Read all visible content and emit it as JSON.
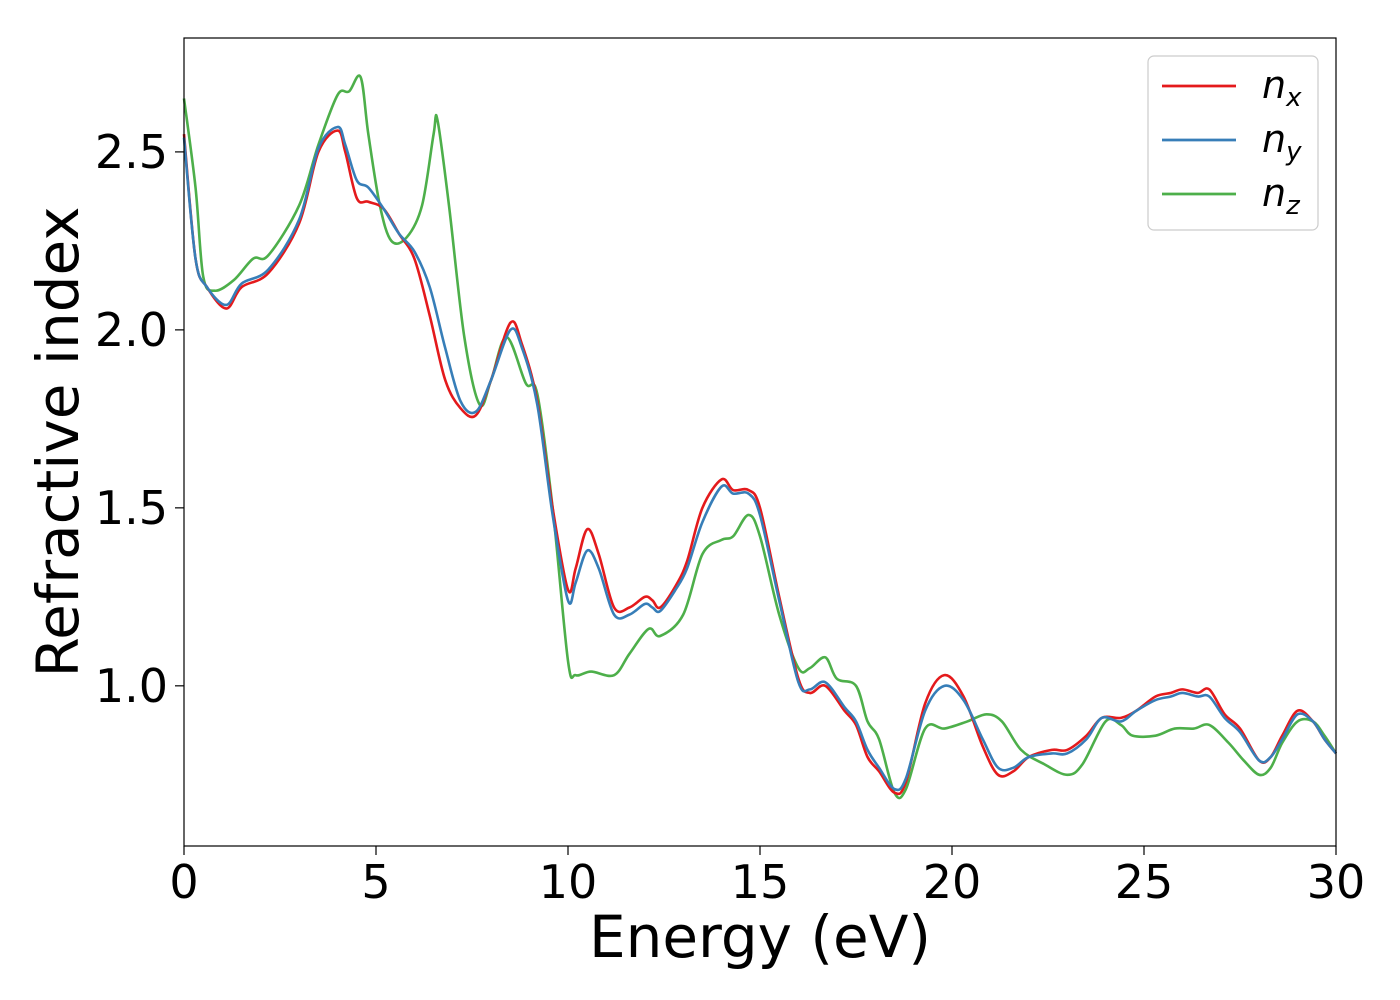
{
  "chart_data": {
    "type": "line",
    "title": "",
    "xlabel": "Energy (eV)",
    "ylabel": "Refractive index",
    "xlim": [
      0,
      30
    ],
    "ylim": [
      0.55,
      2.82
    ],
    "xticks": [
      0,
      5,
      10,
      15,
      20,
      25,
      30
    ],
    "xtick_labels": [
      "0",
      "5",
      "10",
      "15",
      "20",
      "25",
      "30"
    ],
    "yticks": [
      1.0,
      1.5,
      2.0,
      2.5
    ],
    "ytick_labels": [
      "1.0",
      "1.5",
      "2.0",
      "2.5"
    ],
    "grid": false,
    "legend_position": "top-right",
    "series": [
      {
        "name": "n_x",
        "label_base": "n",
        "label_sub": "x",
        "color": "#e41a1c",
        "points": [
          [
            0,
            2.55
          ],
          [
            0.3,
            2.2
          ],
          [
            0.6,
            2.12
          ],
          [
            1.1,
            2.06
          ],
          [
            1.5,
            2.12
          ],
          [
            2.2,
            2.16
          ],
          [
            3.0,
            2.3
          ],
          [
            3.5,
            2.5
          ],
          [
            4.0,
            2.56
          ],
          [
            4.2,
            2.5
          ],
          [
            4.5,
            2.37
          ],
          [
            4.8,
            2.36
          ],
          [
            5.2,
            2.34
          ],
          [
            5.6,
            2.27
          ],
          [
            6.0,
            2.2
          ],
          [
            6.4,
            2.04
          ],
          [
            6.8,
            1.86
          ],
          [
            7.2,
            1.78
          ],
          [
            7.6,
            1.76
          ],
          [
            8.0,
            1.86
          ],
          [
            8.5,
            2.02
          ],
          [
            8.8,
            1.96
          ],
          [
            9.2,
            1.8
          ],
          [
            9.6,
            1.5
          ],
          [
            10.0,
            1.27
          ],
          [
            10.2,
            1.33
          ],
          [
            10.5,
            1.44
          ],
          [
            10.8,
            1.37
          ],
          [
            11.2,
            1.22
          ],
          [
            11.6,
            1.22
          ],
          [
            12.0,
            1.25
          ],
          [
            12.2,
            1.24
          ],
          [
            12.4,
            1.22
          ],
          [
            12.8,
            1.28
          ],
          [
            13.1,
            1.35
          ],
          [
            13.5,
            1.5
          ],
          [
            14.0,
            1.58
          ],
          [
            14.3,
            1.55
          ],
          [
            14.7,
            1.55
          ],
          [
            15.0,
            1.5
          ],
          [
            15.5,
            1.25
          ],
          [
            16.0,
            1.02
          ],
          [
            16.3,
            0.98
          ],
          [
            16.7,
            1.0
          ],
          [
            17.2,
            0.93
          ],
          [
            17.5,
            0.89
          ],
          [
            17.8,
            0.8
          ],
          [
            18.1,
            0.76
          ],
          [
            18.5,
            0.7
          ],
          [
            18.8,
            0.73
          ],
          [
            19.3,
            0.95
          ],
          [
            19.8,
            1.03
          ],
          [
            20.3,
            0.97
          ],
          [
            20.8,
            0.83
          ],
          [
            21.2,
            0.75
          ],
          [
            21.6,
            0.76
          ],
          [
            22.0,
            0.8
          ],
          [
            22.6,
            0.82
          ],
          [
            23.0,
            0.82
          ],
          [
            23.5,
            0.86
          ],
          [
            23.9,
            0.91
          ],
          [
            24.4,
            0.91
          ],
          [
            24.8,
            0.93
          ],
          [
            25.3,
            0.97
          ],
          [
            25.7,
            0.98
          ],
          [
            26.0,
            0.99
          ],
          [
            26.4,
            0.98
          ],
          [
            26.7,
            0.99
          ],
          [
            27.1,
            0.92
          ],
          [
            27.5,
            0.88
          ],
          [
            28.0,
            0.79
          ],
          [
            28.3,
            0.8
          ],
          [
            28.6,
            0.86
          ],
          [
            29.0,
            0.93
          ],
          [
            29.4,
            0.9
          ],
          [
            29.7,
            0.85
          ],
          [
            30.0,
            0.81
          ]
        ]
      },
      {
        "name": "n_y",
        "label_base": "n",
        "label_sub": "y",
        "color": "#377eb8",
        "points": [
          [
            0,
            2.54
          ],
          [
            0.3,
            2.2
          ],
          [
            0.6,
            2.12
          ],
          [
            1.1,
            2.07
          ],
          [
            1.5,
            2.13
          ],
          [
            2.2,
            2.17
          ],
          [
            3.0,
            2.31
          ],
          [
            3.5,
            2.51
          ],
          [
            4.0,
            2.57
          ],
          [
            4.2,
            2.52
          ],
          [
            4.5,
            2.42
          ],
          [
            4.8,
            2.4
          ],
          [
            5.2,
            2.34
          ],
          [
            5.6,
            2.27
          ],
          [
            6.0,
            2.22
          ],
          [
            6.4,
            2.12
          ],
          [
            6.8,
            1.95
          ],
          [
            7.2,
            1.8
          ],
          [
            7.6,
            1.77
          ],
          [
            8.0,
            1.86
          ],
          [
            8.5,
            2.0
          ],
          [
            8.8,
            1.95
          ],
          [
            9.2,
            1.79
          ],
          [
            9.6,
            1.48
          ],
          [
            10.0,
            1.24
          ],
          [
            10.2,
            1.29
          ],
          [
            10.5,
            1.38
          ],
          [
            10.8,
            1.33
          ],
          [
            11.2,
            1.2
          ],
          [
            11.6,
            1.2
          ],
          [
            12.0,
            1.23
          ],
          [
            12.2,
            1.22
          ],
          [
            12.4,
            1.21
          ],
          [
            12.8,
            1.27
          ],
          [
            13.1,
            1.33
          ],
          [
            13.5,
            1.46
          ],
          [
            14.0,
            1.56
          ],
          [
            14.3,
            1.54
          ],
          [
            14.7,
            1.54
          ],
          [
            15.0,
            1.48
          ],
          [
            15.5,
            1.24
          ],
          [
            16.0,
            1.01
          ],
          [
            16.3,
            0.99
          ],
          [
            16.7,
            1.01
          ],
          [
            17.2,
            0.94
          ],
          [
            17.5,
            0.9
          ],
          [
            17.8,
            0.82
          ],
          [
            18.1,
            0.77
          ],
          [
            18.5,
            0.71
          ],
          [
            18.8,
            0.74
          ],
          [
            19.3,
            0.93
          ],
          [
            19.8,
            1.0
          ],
          [
            20.3,
            0.96
          ],
          [
            20.8,
            0.85
          ],
          [
            21.2,
            0.77
          ],
          [
            21.6,
            0.77
          ],
          [
            22.0,
            0.8
          ],
          [
            22.6,
            0.81
          ],
          [
            23.0,
            0.81
          ],
          [
            23.5,
            0.85
          ],
          [
            23.9,
            0.91
          ],
          [
            24.4,
            0.9
          ],
          [
            24.8,
            0.93
          ],
          [
            25.3,
            0.96
          ],
          [
            25.7,
            0.97
          ],
          [
            26.0,
            0.98
          ],
          [
            26.4,
            0.97
          ],
          [
            26.7,
            0.97
          ],
          [
            27.1,
            0.91
          ],
          [
            27.5,
            0.87
          ],
          [
            28.0,
            0.79
          ],
          [
            28.3,
            0.8
          ],
          [
            28.6,
            0.85
          ],
          [
            29.0,
            0.92
          ],
          [
            29.4,
            0.9
          ],
          [
            29.7,
            0.85
          ],
          [
            30.0,
            0.81
          ]
        ]
      },
      {
        "name": "n_z",
        "label_base": "n",
        "label_sub": "z",
        "color": "#4daf4a",
        "points": [
          [
            0,
            2.65
          ],
          [
            0.3,
            2.4
          ],
          [
            0.5,
            2.15
          ],
          [
            0.8,
            2.11
          ],
          [
            1.3,
            2.14
          ],
          [
            1.8,
            2.2
          ],
          [
            2.2,
            2.21
          ],
          [
            3.0,
            2.35
          ],
          [
            3.5,
            2.52
          ],
          [
            4.0,
            2.66
          ],
          [
            4.3,
            2.67
          ],
          [
            4.6,
            2.71
          ],
          [
            4.8,
            2.55
          ],
          [
            5.1,
            2.35
          ],
          [
            5.4,
            2.25
          ],
          [
            5.8,
            2.26
          ],
          [
            6.2,
            2.35
          ],
          [
            6.5,
            2.55
          ],
          [
            6.6,
            2.59
          ],
          [
            6.9,
            2.35
          ],
          [
            7.3,
            1.98
          ],
          [
            7.7,
            1.79
          ],
          [
            8.0,
            1.86
          ],
          [
            8.4,
            1.98
          ],
          [
            8.9,
            1.85
          ],
          [
            9.2,
            1.82
          ],
          [
            9.6,
            1.5
          ],
          [
            10.0,
            1.07
          ],
          [
            10.2,
            1.03
          ],
          [
            10.6,
            1.04
          ],
          [
            11.2,
            1.03
          ],
          [
            11.6,
            1.09
          ],
          [
            12.1,
            1.16
          ],
          [
            12.4,
            1.14
          ],
          [
            13.0,
            1.2
          ],
          [
            13.5,
            1.37
          ],
          [
            14.0,
            1.41
          ],
          [
            14.3,
            1.42
          ],
          [
            14.7,
            1.48
          ],
          [
            15.0,
            1.42
          ],
          [
            15.5,
            1.2
          ],
          [
            16.0,
            1.05
          ],
          [
            16.3,
            1.05
          ],
          [
            16.7,
            1.08
          ],
          [
            17.0,
            1.02
          ],
          [
            17.5,
            1.0
          ],
          [
            17.8,
            0.9
          ],
          [
            18.1,
            0.85
          ],
          [
            18.5,
            0.7
          ],
          [
            18.8,
            0.71
          ],
          [
            19.3,
            0.88
          ],
          [
            19.8,
            0.88
          ],
          [
            20.4,
            0.9
          ],
          [
            20.9,
            0.92
          ],
          [
            21.3,
            0.9
          ],
          [
            21.8,
            0.82
          ],
          [
            22.4,
            0.78
          ],
          [
            23.0,
            0.75
          ],
          [
            23.4,
            0.78
          ],
          [
            24.0,
            0.9
          ],
          [
            24.4,
            0.89
          ],
          [
            24.7,
            0.86
          ],
          [
            25.3,
            0.86
          ],
          [
            25.8,
            0.88
          ],
          [
            26.3,
            0.88
          ],
          [
            26.7,
            0.89
          ],
          [
            27.2,
            0.84
          ],
          [
            27.6,
            0.79
          ],
          [
            28.0,
            0.75
          ],
          [
            28.3,
            0.77
          ],
          [
            28.6,
            0.84
          ],
          [
            29.0,
            0.9
          ],
          [
            29.4,
            0.9
          ],
          [
            29.7,
            0.86
          ],
          [
            30.0,
            0.81
          ]
        ]
      }
    ]
  }
}
